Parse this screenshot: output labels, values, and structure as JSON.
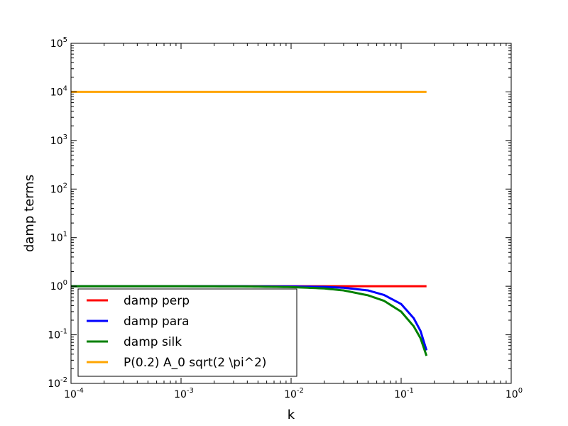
{
  "chart_data": {
    "type": "line",
    "xlabel": "k",
    "ylabel": "damp terms",
    "xscale": "log",
    "yscale": "log",
    "xlim": [
      0.0001,
      1
    ],
    "ylim": [
      0.01,
      100000
    ],
    "x_ticks": [
      {
        "value": 0.0001,
        "base": "10",
        "exp": "-4"
      },
      {
        "value": 0.001,
        "base": "10",
        "exp": "-3"
      },
      {
        "value": 0.01,
        "base": "10",
        "exp": "-2"
      },
      {
        "value": 0.1,
        "base": "10",
        "exp": "-1"
      },
      {
        "value": 1,
        "base": "10",
        "exp": "0"
      }
    ],
    "y_ticks": [
      {
        "value": 0.01,
        "base": "10",
        "exp": "-2"
      },
      {
        "value": 0.1,
        "base": "10",
        "exp": "-1"
      },
      {
        "value": 1,
        "base": "10",
        "exp": "0"
      },
      {
        "value": 10,
        "base": "10",
        "exp": "1"
      },
      {
        "value": 100,
        "base": "10",
        "exp": "2"
      },
      {
        "value": 1000,
        "base": "10",
        "exp": "3"
      },
      {
        "value": 10000,
        "base": "10",
        "exp": "4"
      },
      {
        "value": 100000,
        "base": "10",
        "exp": "5"
      }
    ],
    "legend_position": "lower-left",
    "series": [
      {
        "name": "damp perp",
        "color": "#ff0000",
        "x": [
          0.0001,
          0.001,
          0.01,
          0.05,
          0.1,
          0.17
        ],
        "y": [
          1,
          1,
          1,
          1,
          1,
          1
        ]
      },
      {
        "name": "damp para",
        "color": "#0000ff",
        "x": [
          0.0001,
          0.001,
          0.004,
          0.01,
          0.02,
          0.03,
          0.05,
          0.07,
          0.1,
          0.13,
          0.15,
          0.17
        ],
        "y": [
          1,
          1,
          0.999,
          0.99,
          0.97,
          0.93,
          0.82,
          0.66,
          0.43,
          0.22,
          0.12,
          0.048
        ]
      },
      {
        "name": "damp silk",
        "color": "#008000",
        "x": [
          0.0001,
          0.001,
          0.004,
          0.01,
          0.02,
          0.03,
          0.05,
          0.07,
          0.1,
          0.13,
          0.15,
          0.17
        ],
        "y": [
          1,
          1,
          0.99,
          0.96,
          0.9,
          0.82,
          0.65,
          0.5,
          0.3,
          0.15,
          0.085,
          0.037
        ]
      },
      {
        "name": "P(0.2) A_0 sqrt(2 \\pi^2)",
        "color": "#ffa500",
        "x": [
          0.0001,
          0.001,
          0.01,
          0.1,
          0.17
        ],
        "y": [
          10000,
          10000,
          10000,
          10000,
          10000
        ]
      }
    ]
  }
}
